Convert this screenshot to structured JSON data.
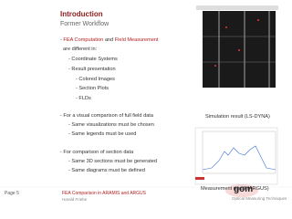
{
  "header": {
    "title": "Introduction",
    "subtitle": "Former Workflow"
  },
  "bullets": [
    {
      "parts": [
        "- ",
        "FEA Computation",
        " and ",
        "Field Measurement"
      ]
    },
    {
      "text": "are different in:"
    },
    {
      "text": "- Coordinate Systems"
    },
    {
      "text": "- Result presentation"
    },
    {
      "text": "- Colored Images"
    },
    {
      "text": "- Section Plots"
    },
    {
      "text": "- FLDs"
    },
    {
      "text": "- For a visual comparison of full field data"
    },
    {
      "text": "- Same visualizations must be chosen"
    },
    {
      "text": "- Same legends must be used"
    },
    {
      "text": "- For comparison of section data"
    },
    {
      "text": "- Same 3D sections must be generated"
    },
    {
      "text": "- Same diagrams must be defined"
    }
  ],
  "captions": {
    "simulation": "Simulation result (LS-DYNA)",
    "measurement": "Measurement result (ARGUS)"
  },
  "footer": {
    "page": "Page 5",
    "title": "FEA Comparison in ARAMIS and ARGUS",
    "author": "Harald Friebe",
    "logo": "gom",
    "tagline": "Optical Measuring Techniques"
  }
}
